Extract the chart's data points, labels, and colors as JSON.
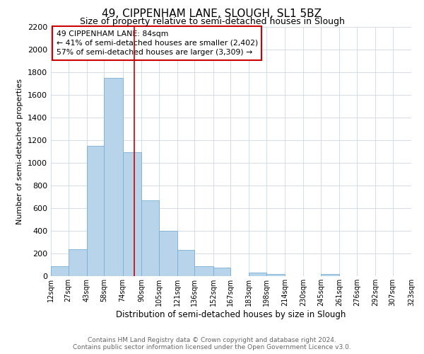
{
  "title": "49, CIPPENHAM LANE, SLOUGH, SL1 5BZ",
  "subtitle": "Size of property relative to semi-detached houses in Slough",
  "xlabel": "Distribution of semi-detached houses by size in Slough",
  "ylabel": "Number of semi-detached properties",
  "footnote1": "Contains HM Land Registry data © Crown copyright and database right 2024.",
  "footnote2": "Contains public sector information licensed under the Open Government Licence v3.0.",
  "bin_edges": [
    12,
    27,
    43,
    58,
    74,
    90,
    105,
    121,
    136,
    152,
    167,
    183,
    198,
    214,
    230,
    245,
    261,
    276,
    292,
    307,
    323
  ],
  "bin_labels": [
    "12sqm",
    "27sqm",
    "43sqm",
    "58sqm",
    "74sqm",
    "90sqm",
    "105sqm",
    "121sqm",
    "136sqm",
    "152sqm",
    "167sqm",
    "183sqm",
    "198sqm",
    "214sqm",
    "230sqm",
    "245sqm",
    "261sqm",
    "276sqm",
    "292sqm",
    "307sqm",
    "323sqm"
  ],
  "counts": [
    90,
    240,
    1150,
    1750,
    1090,
    670,
    400,
    230,
    90,
    75,
    0,
    30,
    20,
    0,
    0,
    20,
    0,
    0,
    0,
    0
  ],
  "property_line_x": 84,
  "annotation_title": "49 CIPPENHAM LANE: 84sqm",
  "annotation_line1": "← 41% of semi-detached houses are smaller (2,402)",
  "annotation_line2": "57% of semi-detached houses are larger (3,309) →",
  "bar_color": "#b8d4ea",
  "bar_edge_color": "#7aafd4",
  "line_color": "#cc0000",
  "annotation_box_edge_color": "#cc0000",
  "grid_color": "#d0d8e8",
  "background_color": "#ffffff",
  "ylim": [
    0,
    2200
  ],
  "yticks": [
    0,
    200,
    400,
    600,
    800,
    1000,
    1200,
    1400,
    1600,
    1800,
    2000,
    2200
  ],
  "title_fontsize": 11,
  "subtitle_fontsize": 9
}
